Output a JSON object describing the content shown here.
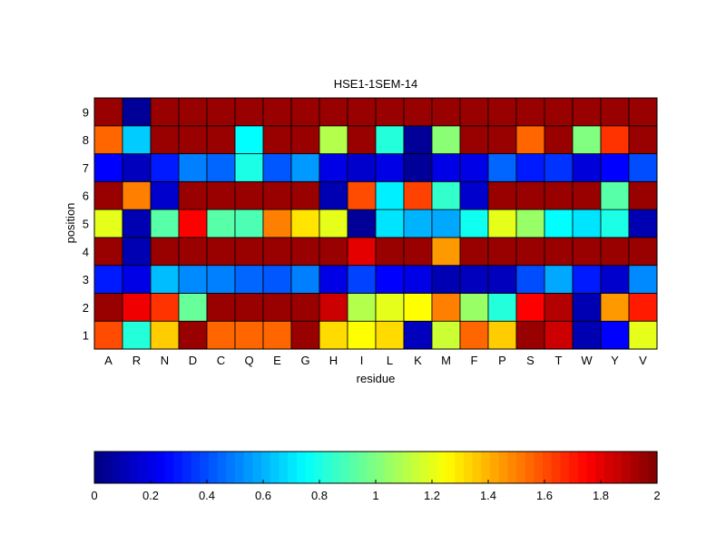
{
  "chart_data": {
    "type": "heatmap",
    "title": "HSE1-1SEM-14",
    "xlabel": "residue",
    "ylabel": "position",
    "x_categories": [
      "A",
      "R",
      "N",
      "D",
      "C",
      "Q",
      "E",
      "G",
      "H",
      "I",
      "L",
      "K",
      "M",
      "F",
      "P",
      "S",
      "T",
      "W",
      "Y",
      "V"
    ],
    "y_categories": [
      "1",
      "2",
      "3",
      "4",
      "5",
      "6",
      "7",
      "8",
      "9"
    ],
    "colormap": "jet",
    "clim": [
      0,
      2
    ],
    "colorbar_ticks": [
      "0",
      "0.2",
      "0.4",
      "0.6",
      "0.8",
      "1",
      "1.2",
      "1.4",
      "1.6",
      "1.8",
      "2"
    ],
    "colorbar_placement": "bottom",
    "values": [
      [
        1.6,
        0.82,
        1.35,
        1.95,
        1.55,
        1.55,
        1.55,
        1.95,
        1.32,
        1.25,
        1.32,
        0.12,
        1.15,
        1.55,
        1.35,
        1.95,
        1.85,
        0.1,
        0.25,
        1.2
      ],
      [
        1.95,
        1.78,
        1.65,
        0.95,
        1.95,
        1.95,
        1.95,
        1.95,
        1.85,
        1.1,
        1.2,
        1.25,
        1.5,
        1.05,
        0.82,
        1.75,
        1.9,
        0.1,
        1.45,
        1.7
      ],
      [
        0.3,
        0.2,
        0.62,
        0.52,
        0.5,
        0.45,
        0.42,
        0.5,
        0.2,
        0.38,
        0.25,
        0.2,
        0.1,
        0.12,
        0.12,
        0.4,
        0.58,
        0.3,
        0.15,
        0.52
      ],
      [
        1.95,
        0.1,
        1.95,
        1.95,
        1.95,
        1.95,
        1.95,
        1.95,
        1.95,
        1.8,
        1.95,
        1.95,
        1.45,
        1.95,
        1.95,
        1.95,
        1.95,
        1.95,
        1.95,
        1.95
      ],
      [
        1.2,
        0.1,
        0.92,
        1.75,
        0.92,
        0.9,
        1.5,
        1.3,
        1.2,
        0.05,
        0.7,
        0.6,
        0.58,
        0.78,
        1.2,
        1.05,
        0.75,
        0.7,
        0.8,
        0.1
      ],
      [
        1.95,
        1.5,
        0.15,
        1.95,
        1.95,
        1.95,
        1.95,
        1.95,
        0.1,
        1.6,
        0.72,
        1.62,
        0.85,
        0.15,
        1.95,
        1.95,
        1.95,
        1.95,
        0.92,
        1.95
      ],
      [
        0.25,
        0.12,
        0.3,
        0.5,
        0.45,
        0.8,
        0.42,
        0.55,
        0.2,
        0.15,
        0.2,
        0.05,
        0.2,
        0.2,
        0.45,
        0.3,
        0.35,
        0.18,
        0.25,
        0.4
      ],
      [
        1.55,
        0.65,
        1.95,
        1.95,
        1.95,
        0.75,
        1.95,
        1.95,
        1.1,
        1.95,
        0.82,
        0.05,
        1.02,
        1.95,
        1.95,
        1.55,
        1.95,
        1.0,
        1.65,
        1.95
      ],
      [
        1.95,
        0.05,
        1.95,
        1.95,
        1.95,
        1.95,
        1.95,
        1.95,
        1.95,
        1.95,
        1.95,
        1.95,
        1.95,
        1.95,
        1.95,
        1.95,
        1.95,
        1.95,
        1.95,
        1.95
      ]
    ]
  }
}
